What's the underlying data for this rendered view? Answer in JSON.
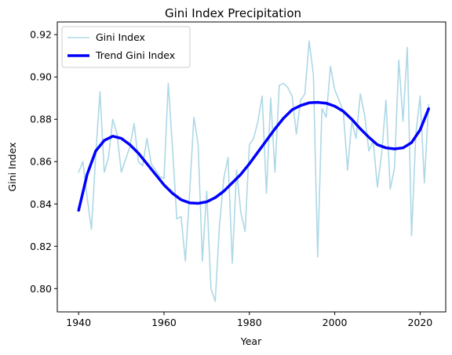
{
  "chart_data": {
    "type": "line",
    "title": "Gini Index Precipitation",
    "xlabel": "Year",
    "ylabel": "Gini Index",
    "xlim": [
      1935,
      2026
    ],
    "ylim": [
      0.789,
      0.926
    ],
    "xticks": [
      1940,
      1960,
      1980,
      2000,
      2020
    ],
    "yticks": [
      0.8,
      0.82,
      0.84,
      0.86,
      0.88,
      0.9,
      0.92
    ],
    "legend_position": "upper-left",
    "grid": false,
    "series": [
      {
        "name": "Gini Index",
        "color": "#add8e6",
        "x": [
          1940,
          1941,
          1942,
          1943,
          1944,
          1945,
          1946,
          1947,
          1948,
          1949,
          1950,
          1951,
          1952,
          1953,
          1954,
          1955,
          1956,
          1957,
          1958,
          1959,
          1960,
          1961,
          1962,
          1963,
          1964,
          1965,
          1966,
          1967,
          1968,
          1969,
          1970,
          1971,
          1972,
          1973,
          1974,
          1975,
          1976,
          1977,
          1978,
          1979,
          1980,
          1981,
          1982,
          1983,
          1984,
          1985,
          1986,
          1987,
          1988,
          1989,
          1990,
          1991,
          1992,
          1993,
          1994,
          1995,
          1996,
          1997,
          1998,
          1999,
          2000,
          2001,
          2002,
          2003,
          2004,
          2005,
          2006,
          2007,
          2008,
          2009,
          2010,
          2011,
          2012,
          2013,
          2014,
          2015,
          2016,
          2017,
          2018,
          2019,
          2020,
          2021,
          2022
        ],
        "y": [
          0.855,
          0.86,
          0.843,
          0.828,
          0.863,
          0.893,
          0.855,
          0.862,
          0.88,
          0.873,
          0.855,
          0.861,
          0.867,
          0.878,
          0.86,
          0.858,
          0.871,
          0.859,
          0.856,
          0.853,
          0.852,
          0.897,
          0.866,
          0.833,
          0.834,
          0.813,
          0.845,
          0.881,
          0.868,
          0.813,
          0.846,
          0.8,
          0.794,
          0.83,
          0.852,
          0.862,
          0.812,
          0.856,
          0.836,
          0.827,
          0.868,
          0.871,
          0.879,
          0.891,
          0.845,
          0.89,
          0.855,
          0.896,
          0.897,
          0.895,
          0.891,
          0.873,
          0.889,
          0.892,
          0.917,
          0.901,
          0.815,
          0.885,
          0.881,
          0.905,
          0.894,
          0.889,
          0.884,
          0.856,
          0.879,
          0.871,
          0.892,
          0.882,
          0.865,
          0.87,
          0.848,
          0.864,
          0.889,
          0.847,
          0.857,
          0.908,
          0.879,
          0.914,
          0.825,
          0.873,
          0.891,
          0.85,
          0.887
        ]
      },
      {
        "name": "Trend Gini Index",
        "color": "#0000ff",
        "x": [
          1940,
          1942,
          1944,
          1946,
          1948,
          1950,
          1952,
          1954,
          1956,
          1958,
          1960,
          1962,
          1964,
          1966,
          1968,
          1970,
          1972,
          1974,
          1976,
          1978,
          1980,
          1982,
          1984,
          1986,
          1988,
          1990,
          1992,
          1994,
          1996,
          1998,
          2000,
          2002,
          2004,
          2006,
          2008,
          2010,
          2012,
          2014,
          2016,
          2018,
          2020,
          2022
        ],
        "y": [
          0.837,
          0.854,
          0.865,
          0.87,
          0.872,
          0.871,
          0.868,
          0.864,
          0.859,
          0.854,
          0.849,
          0.845,
          0.842,
          0.8405,
          0.8403,
          0.841,
          0.843,
          0.846,
          0.85,
          0.854,
          0.859,
          0.8645,
          0.87,
          0.8755,
          0.8805,
          0.8845,
          0.8865,
          0.8878,
          0.888,
          0.8876,
          0.8862,
          0.8838,
          0.88,
          0.8755,
          0.8715,
          0.868,
          0.8665,
          0.866,
          0.8665,
          0.869,
          0.875,
          0.885
        ]
      }
    ]
  }
}
